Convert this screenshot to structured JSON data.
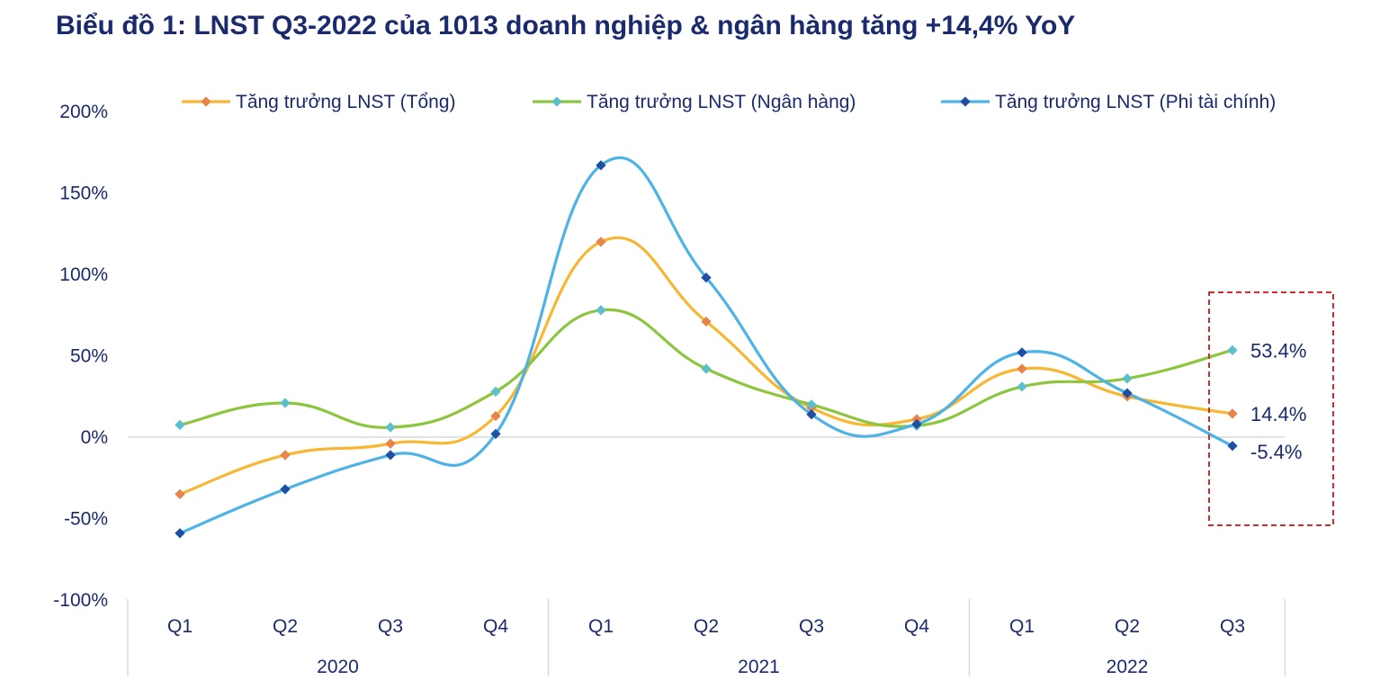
{
  "title": "Biểu đồ 1: LNST Q3-2022 của 1013 doanh nghiệp & ngân hàng tăng +14,4% YoY",
  "chart_data": {
    "type": "line",
    "smooth": true,
    "categories": [
      "Q1",
      "Q2",
      "Q3",
      "Q4",
      "Q1",
      "Q2",
      "Q3",
      "Q4",
      "Q1",
      "Q2",
      "Q3"
    ],
    "groups": [
      {
        "label": "2020",
        "count": 4
      },
      {
        "label": "2021",
        "count": 4
      },
      {
        "label": "2022",
        "count": 3
      }
    ],
    "ylim": [
      -100,
      200
    ],
    "yticks": [
      "-100%",
      "-50%",
      "0%",
      "50%",
      "100%",
      "150%",
      "200%"
    ],
    "ytick_values": [
      -100,
      -50,
      0,
      50,
      100,
      150,
      200
    ],
    "legend_position": "top",
    "series": [
      {
        "name": "Tăng trưởng LNST (Tổng)",
        "color": "#f7b733",
        "marker_color": "#e8834a",
        "values": [
          -35,
          -11,
          -4,
          13,
          120,
          71,
          18,
          11,
          42,
          25,
          14.4
        ]
      },
      {
        "name": "Tăng trưởng LNST (Ngân hàng)",
        "color": "#8cc63f",
        "marker_color": "#5bc0c9",
        "values": [
          7.5,
          21,
          6,
          28,
          78,
          42,
          20,
          7,
          31,
          36,
          53.4
        ]
      },
      {
        "name": "Tăng trưởng LNST (Phi tài chính)",
        "color": "#4db3e6",
        "marker_color": "#1f4fa3",
        "values": [
          -59,
          -32,
          -11,
          2,
          167,
          98,
          14,
          8,
          52,
          27,
          -5.4
        ]
      }
    ],
    "end_labels": [
      "53.4%",
      "14.4%",
      "-5.4%"
    ],
    "highlight_box": {
      "style": "dashed",
      "color": "#d22b2b",
      "around": "Q3 2022"
    }
  }
}
